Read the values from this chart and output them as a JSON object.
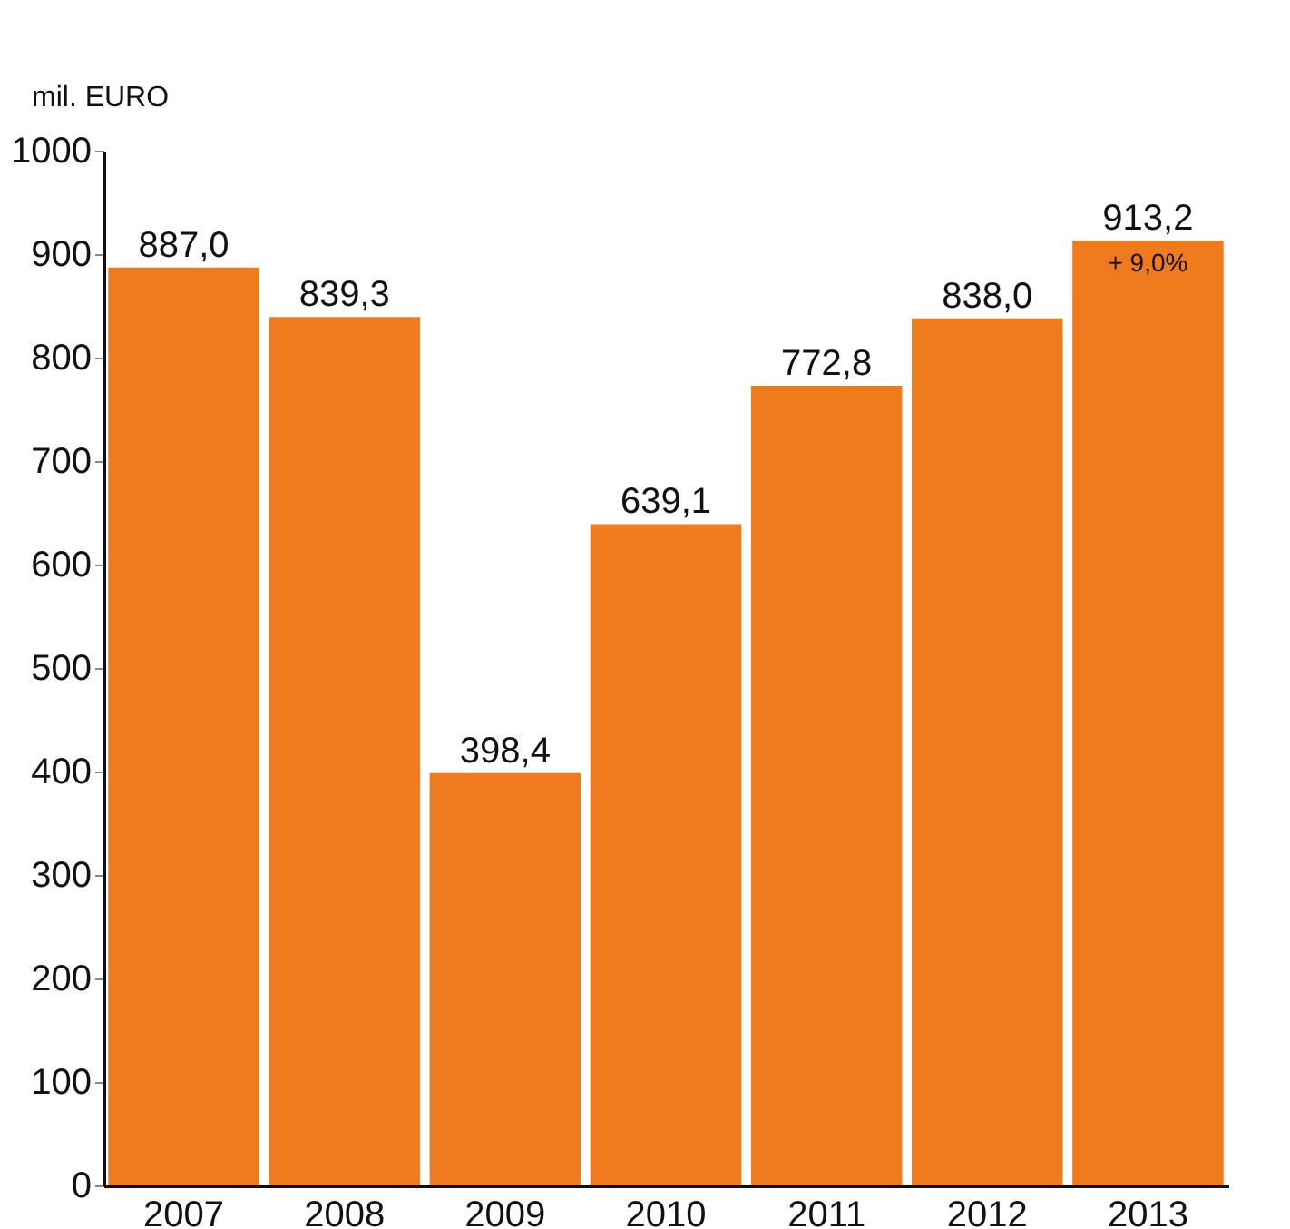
{
  "chart_data": {
    "type": "bar",
    "ylabel": "mil. EURO",
    "categories": [
      "2007",
      "2008",
      "2009",
      "2010",
      "2011",
      "2012",
      "2013"
    ],
    "values": [
      887.0,
      839.3,
      398.4,
      639.1,
      772.8,
      838.0,
      913.2
    ],
    "value_labels": [
      "887,0",
      "839,3",
      "398,4",
      "639,1",
      "772,8",
      "838,0",
      "913,2"
    ],
    "color": "#f07a1e",
    "ylim": [
      0,
      1000
    ],
    "yticks": [
      0,
      100,
      200,
      300,
      400,
      500,
      600,
      700,
      800,
      900,
      1000
    ],
    "grid": false,
    "annotations": [
      {
        "text": "+ 9,0%",
        "x": "2013",
        "y": 913.2
      }
    ]
  }
}
